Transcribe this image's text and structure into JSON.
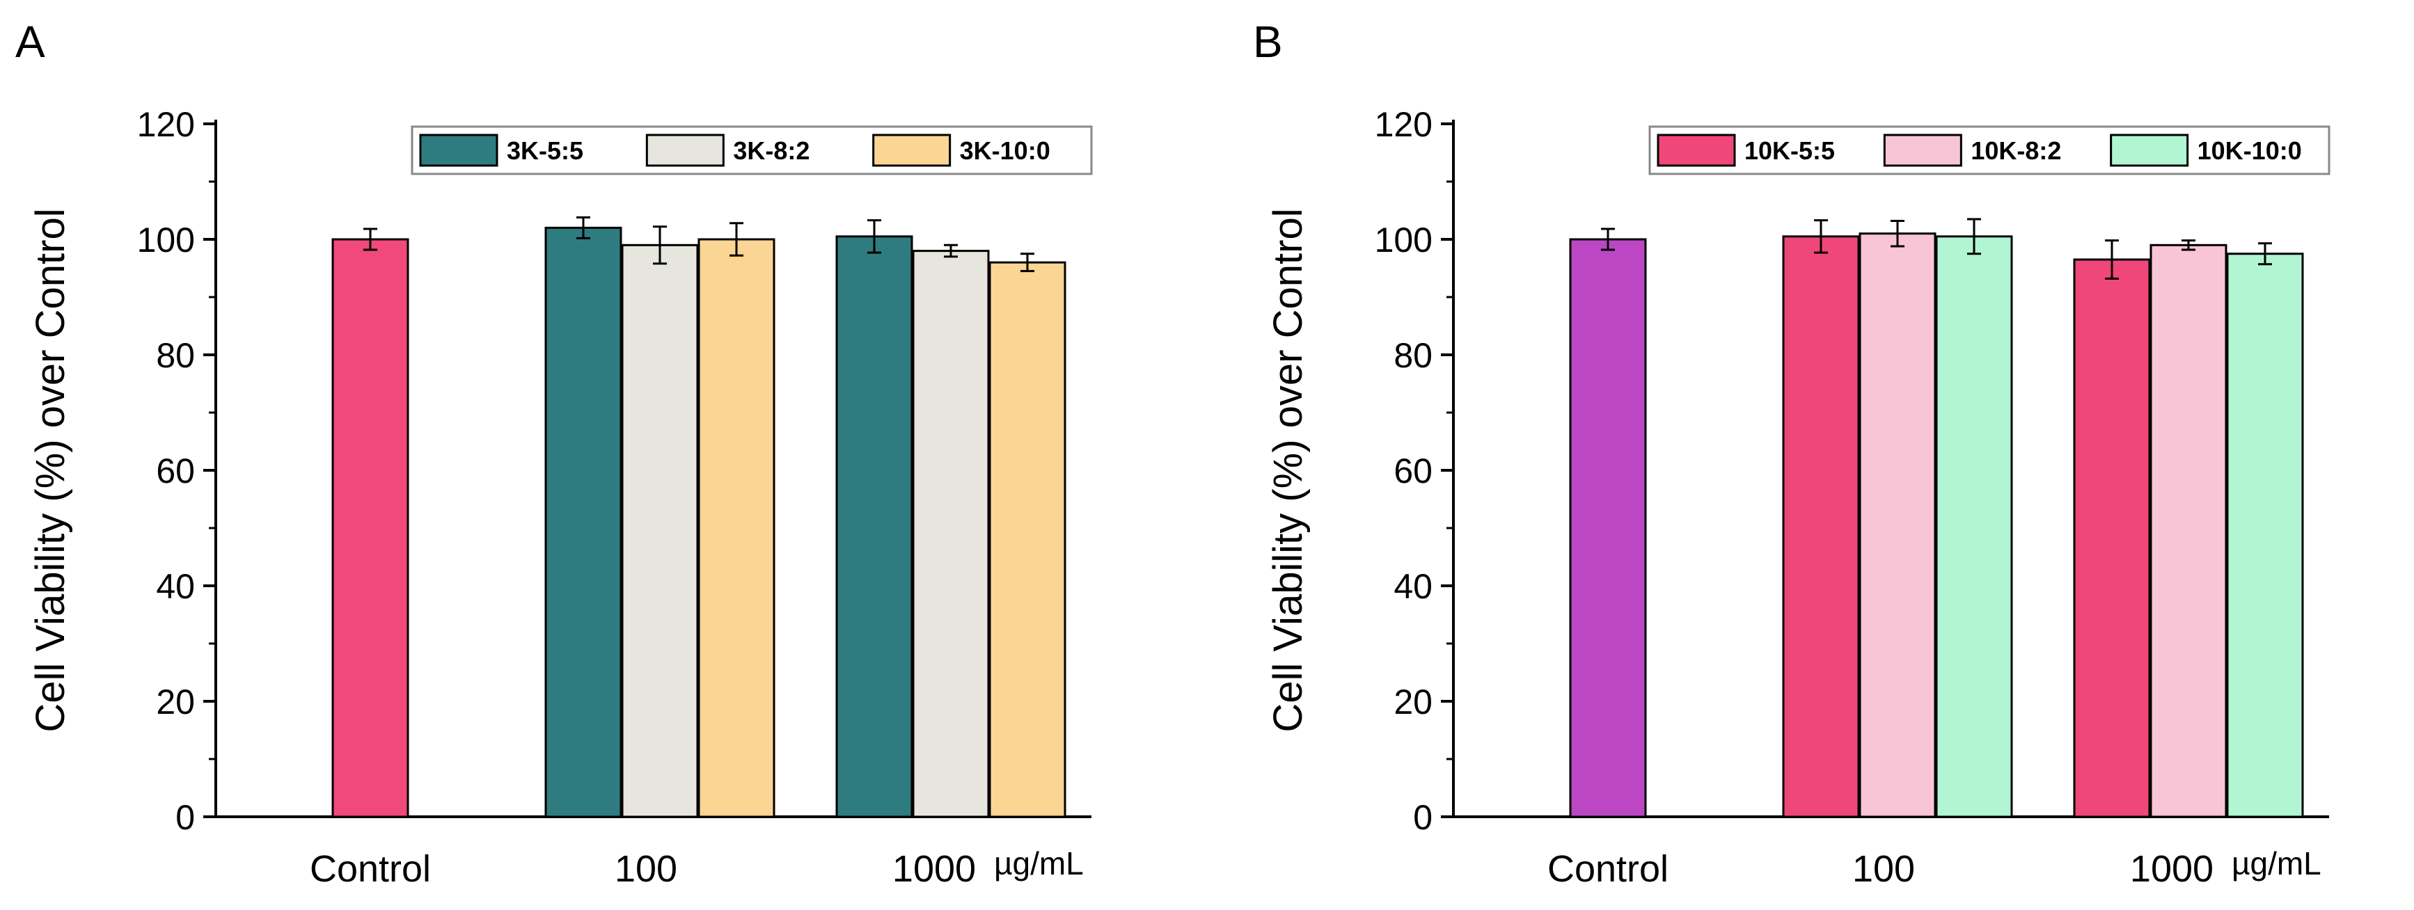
{
  "chart_data": [
    {
      "panel": "A",
      "type": "bar",
      "ylabel": "Cell Viability (%) over Control",
      "xunit": "µg/mL",
      "ylim": [
        0,
        120
      ],
      "yticks": [
        0,
        20,
        40,
        60,
        80,
        100,
        120
      ],
      "legend_position": "top-right",
      "control": {
        "label": "Control",
        "value": 100,
        "error": 1.8,
        "color": "#f0497a"
      },
      "groups": [
        "100",
        "1000"
      ],
      "series": [
        {
          "name": "3K-5:5",
          "color": "#2f7c80",
          "values": [
            102,
            100.5
          ],
          "errors": [
            1.8,
            2.8
          ]
        },
        {
          "name": "3K-8:2",
          "color": "#e6e6de",
          "values": [
            99,
            98
          ],
          "errors": [
            3.2,
            1.0
          ]
        },
        {
          "name": "3K-10:0",
          "color": "#fbd593",
          "values": [
            100,
            96
          ],
          "errors": [
            2.8,
            1.5
          ]
        }
      ]
    },
    {
      "panel": "B",
      "type": "bar",
      "ylabel": "Cell Viability (%) over Control",
      "xunit": "µg/mL",
      "ylim": [
        0,
        120
      ],
      "yticks": [
        0,
        20,
        40,
        60,
        80,
        100,
        120
      ],
      "legend_position": "top-right",
      "control": {
        "label": "Control",
        "value": 100,
        "error": 1.8,
        "color": "#bb47c5"
      },
      "groups": [
        "100",
        "1000"
      ],
      "series": [
        {
          "name": "10K-5:5",
          "color": "#ef4779",
          "values": [
            100.5,
            96.5
          ],
          "errors": [
            2.8,
            3.3
          ]
        },
        {
          "name": "10K-8:2",
          "color": "#f8c5d6",
          "values": [
            101,
            99
          ],
          "errors": [
            2.2,
            0.8
          ]
        },
        {
          "name": "10K-10:0",
          "color": "#b1f5d3",
          "values": [
            100.5,
            97.5
          ],
          "errors": [
            3.0,
            1.8
          ]
        }
      ]
    }
  ]
}
